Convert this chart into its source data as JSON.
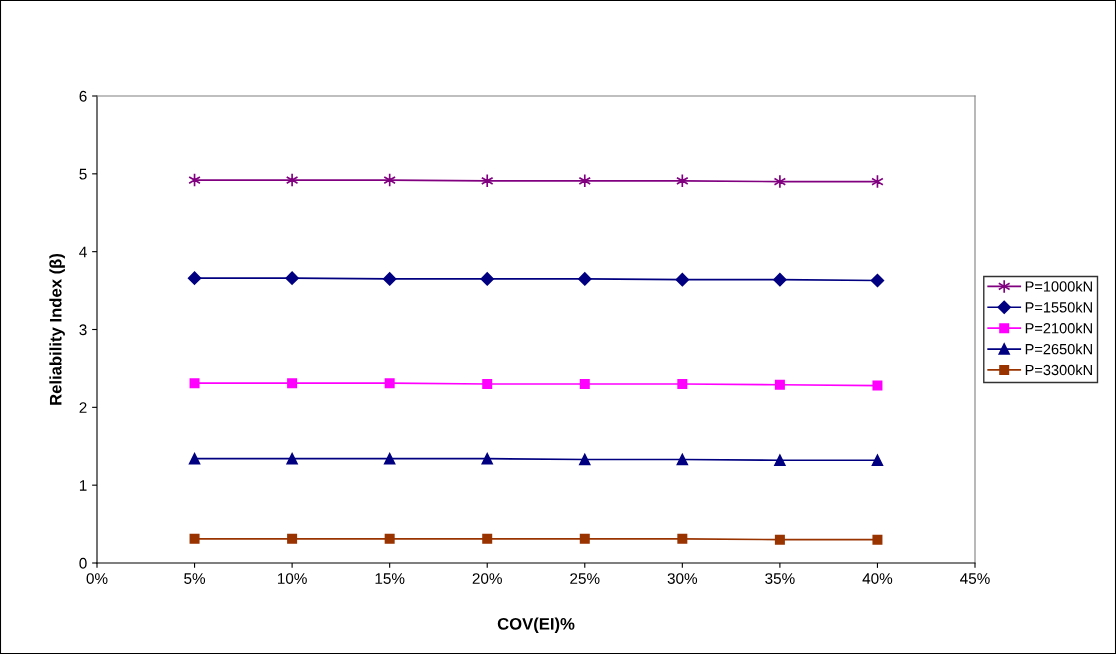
{
  "chart_data": {
    "type": "line",
    "xlabel": "COV(EI)%",
    "ylabel": "Reliability Index (β)",
    "x": [
      5,
      10,
      15,
      20,
      25,
      30,
      35,
      40
    ],
    "xlim": [
      0,
      45
    ],
    "xticks": [
      {
        "value": 0,
        "label": "0%"
      },
      {
        "value": 5,
        "label": "5%"
      },
      {
        "value": 10,
        "label": "10%"
      },
      {
        "value": 15,
        "label": "15%"
      },
      {
        "value": 20,
        "label": "20%"
      },
      {
        "value": 25,
        "label": "25%"
      },
      {
        "value": 30,
        "label": "30%"
      },
      {
        "value": 35,
        "label": "35%"
      },
      {
        "value": 40,
        "label": "40%"
      },
      {
        "value": 45,
        "label": "45%"
      }
    ],
    "ylim": [
      0,
      6
    ],
    "yticks": [
      0,
      1,
      2,
      3,
      4,
      5,
      6
    ],
    "grid": false,
    "legend": "right",
    "line_style": "solid",
    "series": [
      {
        "name": "P=1000kN",
        "color": "#800080",
        "marker": "cross",
        "values": [
          4.92,
          4.92,
          4.92,
          4.91,
          4.91,
          4.91,
          4.9,
          4.9
        ]
      },
      {
        "name": "P=1550kN",
        "color": "#000080",
        "marker": "diamond",
        "values": [
          3.66,
          3.66,
          3.65,
          3.65,
          3.65,
          3.64,
          3.64,
          3.63
        ]
      },
      {
        "name": "P=2100kN",
        "color": "#ff00ff",
        "marker": "square",
        "values": [
          2.31,
          2.31,
          2.31,
          2.3,
          2.3,
          2.3,
          2.29,
          2.28
        ]
      },
      {
        "name": "P=2650kN",
        "color": "#000080",
        "marker": "triangle",
        "values": [
          1.34,
          1.34,
          1.34,
          1.34,
          1.33,
          1.33,
          1.32,
          1.32
        ]
      },
      {
        "name": "P=3300kN",
        "color": "#993300",
        "marker": "square",
        "values": [
          0.31,
          0.31,
          0.31,
          0.31,
          0.31,
          0.31,
          0.3,
          0.3
        ]
      }
    ]
  }
}
